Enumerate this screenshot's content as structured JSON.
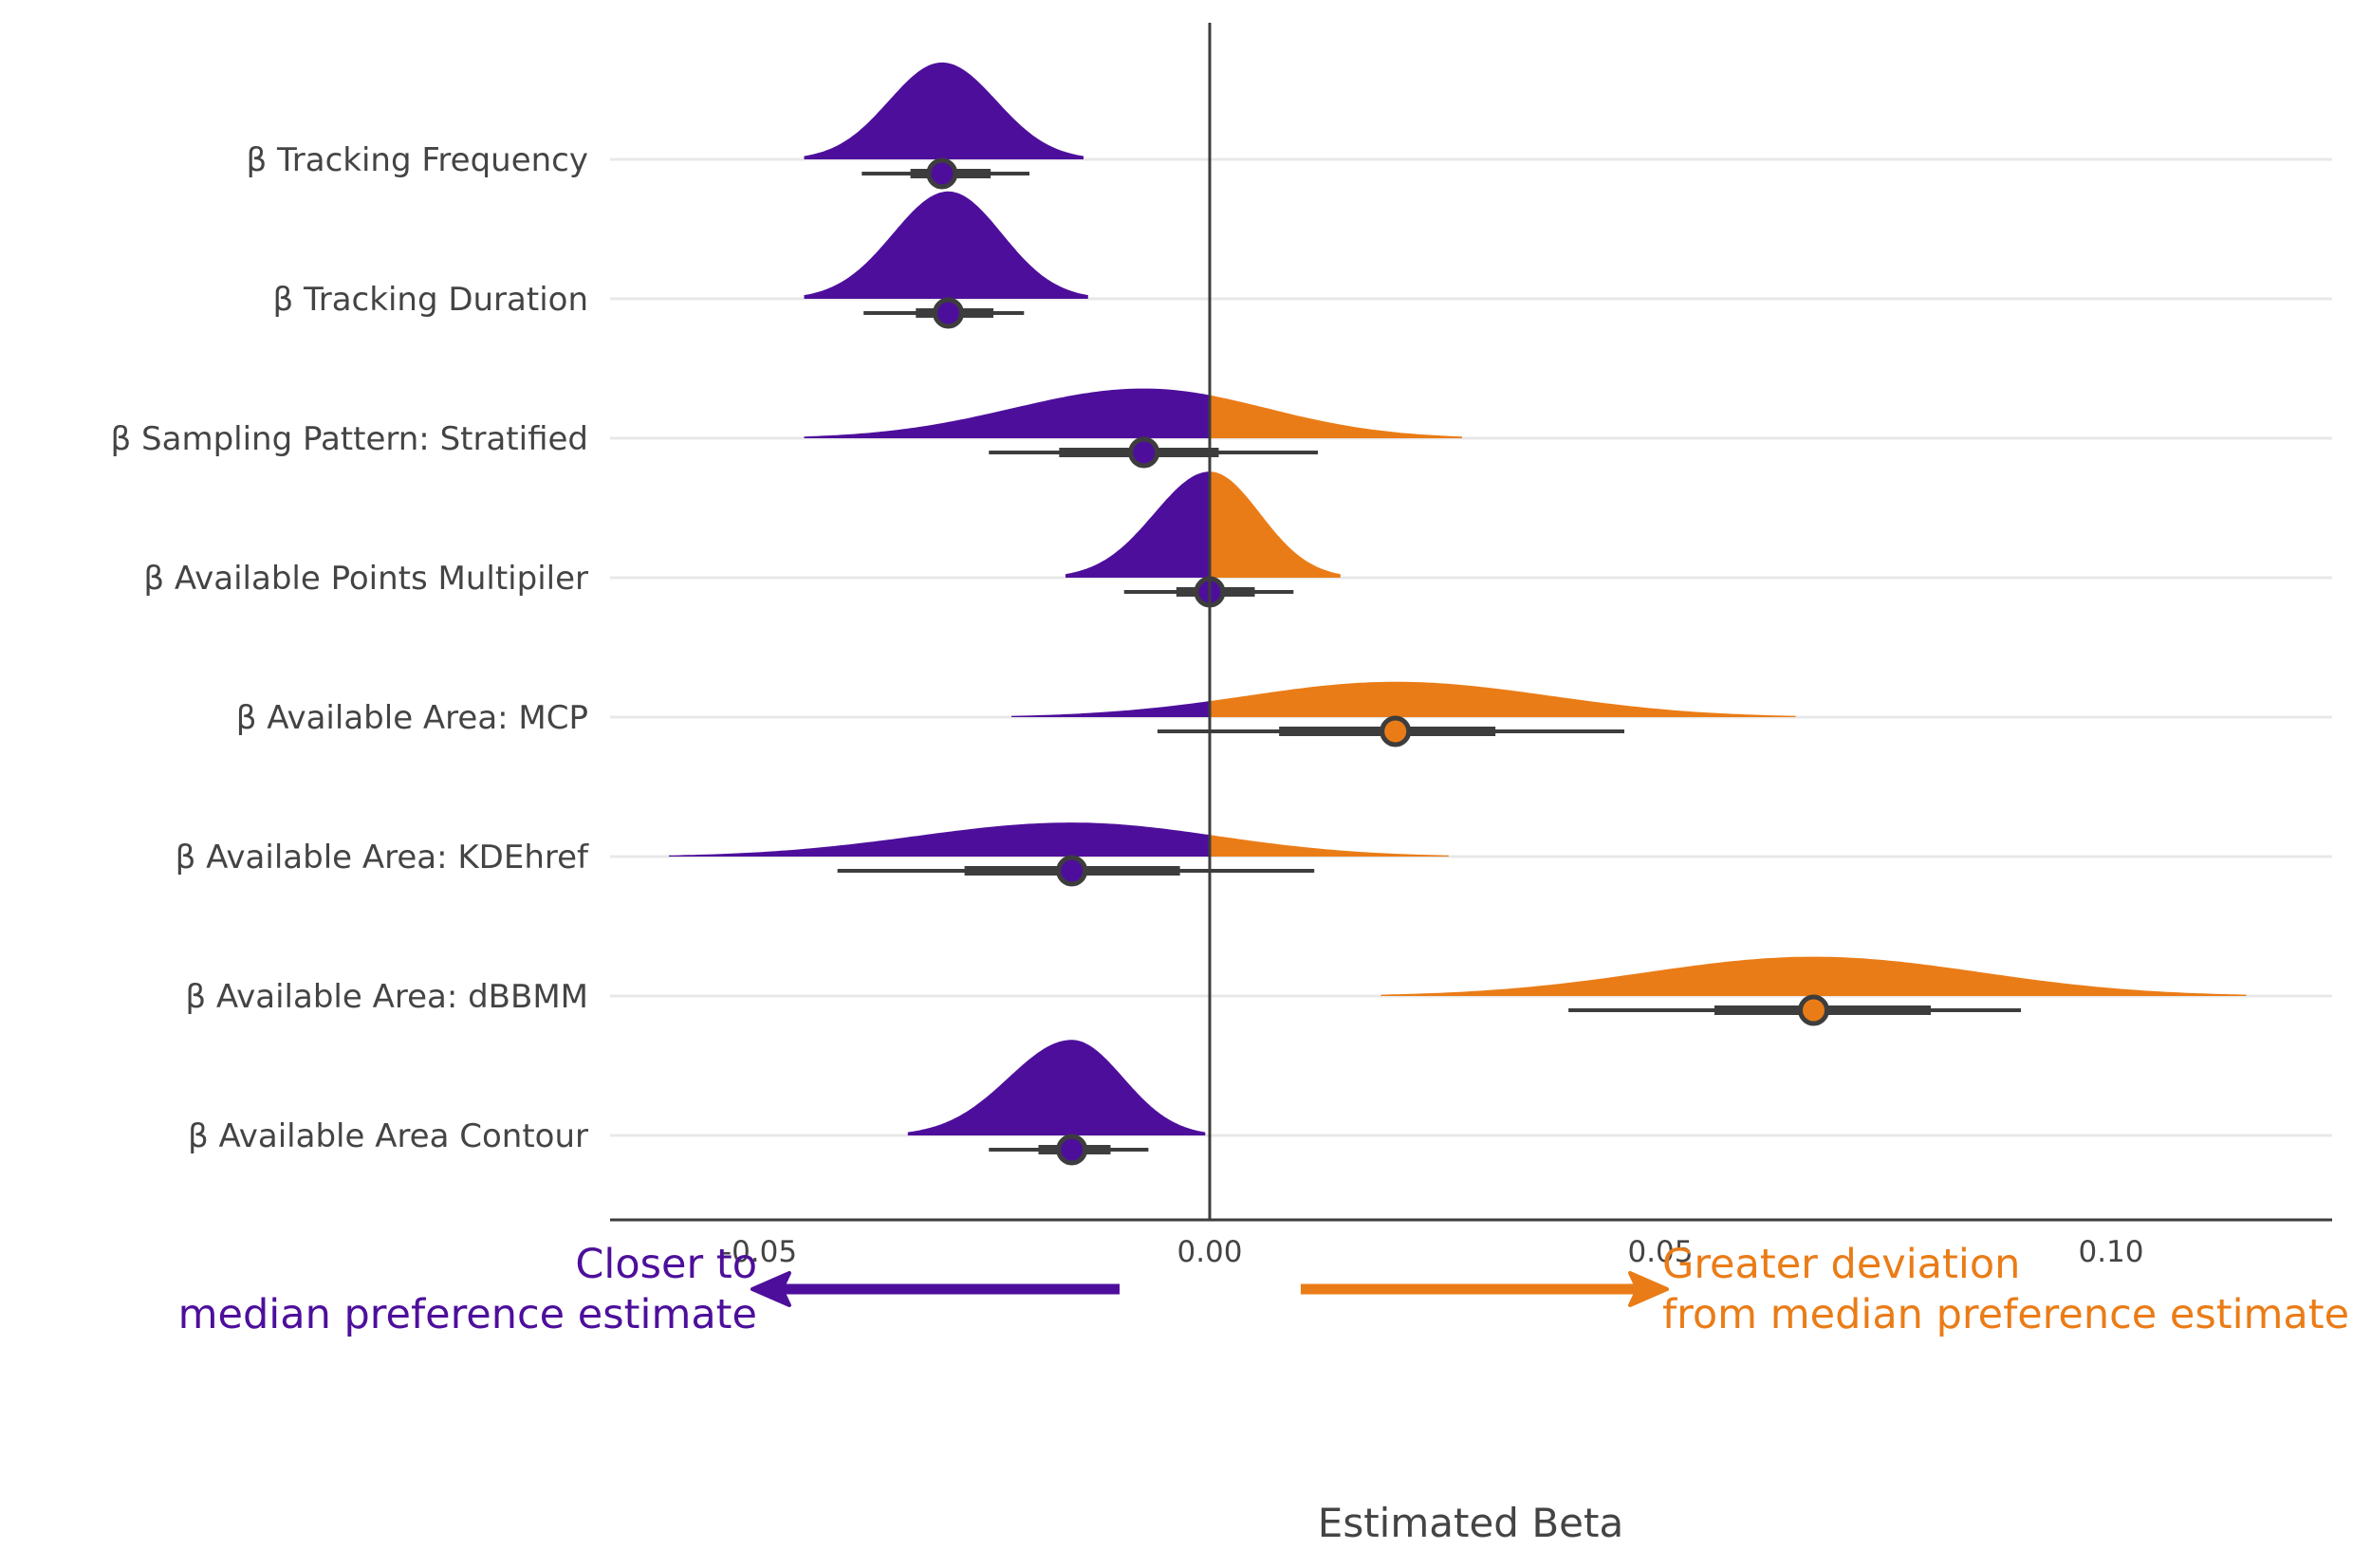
{
  "chart_data": {
    "type": "halfeye",
    "xlabel": "Estimated Beta",
    "xlim": [
      -0.066,
      0.124
    ],
    "x_ticks": [
      -0.05,
      0.0,
      0.05,
      0.1
    ],
    "x_tick_labels": [
      "-0.05",
      "0.00",
      "0.05",
      "0.10"
    ],
    "reference_line": 0.0,
    "colors": {
      "negative": "#4d0f9b",
      "positive": "#ea7c17",
      "interval": "#3d3d3d",
      "grid": "#e8e8e8",
      "axis": "#3d3d3d"
    },
    "categories": [
      "β Tracking Frequency",
      "β Tracking Duration",
      "β Sampling Pattern: Stratified",
      "β Available Points Multipiler",
      "β Available Area: MCP",
      "β Available Area: KDEhref",
      "β Available Area: dBBMM",
      "β Available Area Contour"
    ],
    "series": [
      {
        "median": -0.0297,
        "interval_66": [
          -0.0332,
          -0.0243
        ],
        "interval_95": [
          -0.0386,
          -0.02
        ],
        "density_range": [
          -0.045,
          -0.014
        ],
        "peak_height": 0.74
      },
      {
        "median": -0.029,
        "interval_66": [
          -0.0326,
          -0.024
        ],
        "interval_95": [
          -0.0384,
          -0.0206
        ],
        "density_range": [
          -0.045,
          -0.0135
        ],
        "peak_height": 0.82
      },
      {
        "median": -0.0073,
        "interval_66": [
          -0.0167,
          0.001
        ],
        "interval_95": [
          -0.0245,
          0.012
        ],
        "density_range": [
          -0.045,
          0.028
        ],
        "peak_height": 0.38
      },
      {
        "median": 0.0,
        "interval_66": [
          -0.0037,
          0.005
        ],
        "interval_95": [
          -0.0095,
          0.0093
        ],
        "density_range": [
          -0.016,
          0.0145
        ],
        "peak_height": 0.81
      },
      {
        "median": 0.0206,
        "interval_66": [
          0.0077,
          0.0317
        ],
        "interval_95": [
          -0.0058,
          0.046
        ],
        "density_range": [
          -0.022,
          0.065
        ],
        "peak_height": 0.27
      },
      {
        "median": -0.0153,
        "interval_66": [
          -0.0272,
          -0.0033
        ],
        "interval_95": [
          -0.0413,
          0.0116
        ],
        "density_range": [
          -0.06,
          0.0265
        ],
        "peak_height": 0.26
      },
      {
        "median": 0.067,
        "interval_66": [
          0.056,
          0.08
        ],
        "interval_95": [
          0.0398,
          0.09
        ],
        "density_range": [
          0.019,
          0.115
        ],
        "peak_height": 0.3
      },
      {
        "median": -0.0153,
        "interval_66": [
          -0.019,
          -0.011
        ],
        "interval_95": [
          -0.0245,
          -0.0068
        ],
        "density_range": [
          -0.0335,
          -0.0005
        ],
        "peak_height": 0.73
      }
    ]
  },
  "annotations": {
    "left_line1": "Closer to",
    "left_line2": "median preference estimate",
    "right_line1": "Greater deviation",
    "right_line2": "from median preference estimate"
  }
}
